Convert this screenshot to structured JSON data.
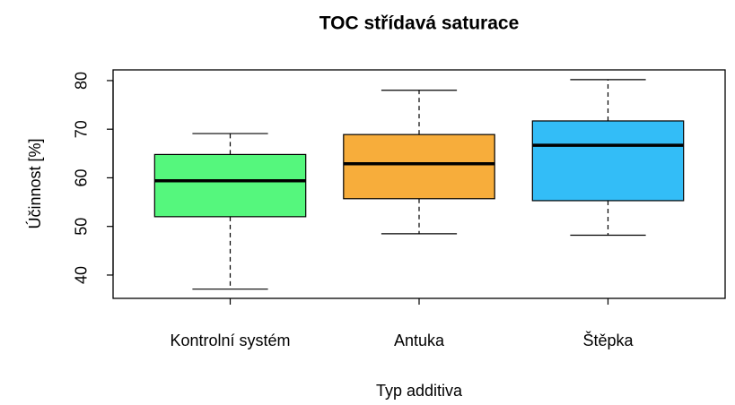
{
  "chart_data": {
    "type": "box",
    "title": "TOC střídavá saturace",
    "x_label": "Typ additiva",
    "y_label": "Účinnost [%]",
    "categories": [
      "Kontrolní systém",
      "Antuka",
      "Štěpka"
    ],
    "colors": [
      "#55f77d",
      "#f7ad3b",
      "#33bdf7"
    ],
    "min": [
      37.1,
      48.5,
      48.2
    ],
    "q1": [
      52.0,
      55.7,
      55.3
    ],
    "median": [
      59.4,
      62.9,
      66.7
    ],
    "q3": [
      64.8,
      68.9,
      71.7
    ],
    "max": [
      69.1,
      78.0,
      80.2
    ],
    "ylim": [
      35.2,
      82.2
    ],
    "yticks": [
      40,
      50,
      60,
      70,
      80
    ]
  }
}
